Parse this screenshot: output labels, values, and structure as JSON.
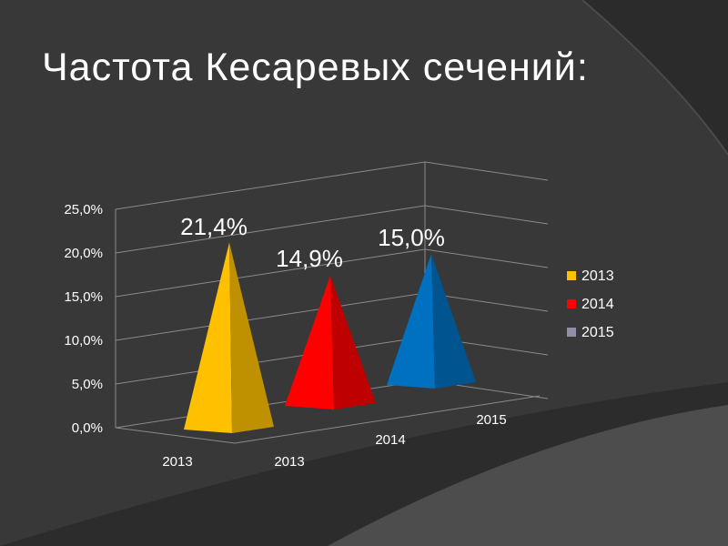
{
  "title": "Частота Кесаревых сечений:",
  "chart_data": {
    "type": "bar",
    "shape": "pyramid-3d",
    "categories": [
      "2013"
    ],
    "series": [
      {
        "name": "2013",
        "values": [
          21.4
        ],
        "data_label": "21,4%",
        "color": "#FFC000"
      },
      {
        "name": "2014",
        "values": [
          14.9
        ],
        "data_label": "14,9%",
        "color": "#FF0000"
      },
      {
        "name": "2015",
        "values": [
          15.0
        ],
        "data_label": "15,0%",
        "color": "#0070C0"
      }
    ],
    "y_ticks": [
      "0,0%",
      "5,0%",
      "10,0%",
      "15,0%",
      "20,0%",
      "25,0%"
    ],
    "ylim": [
      0,
      25
    ],
    "x_tick_labels": [
      "2013"
    ],
    "depth_axis_labels": [
      "2013",
      "2014",
      "2015"
    ],
    "legend": {
      "position": "right",
      "entries": [
        "2013",
        "2014",
        "2015"
      ],
      "swatch_colors": [
        "#FFC000",
        "#FF0000",
        "#8F8FA8"
      ]
    },
    "grid": true
  }
}
